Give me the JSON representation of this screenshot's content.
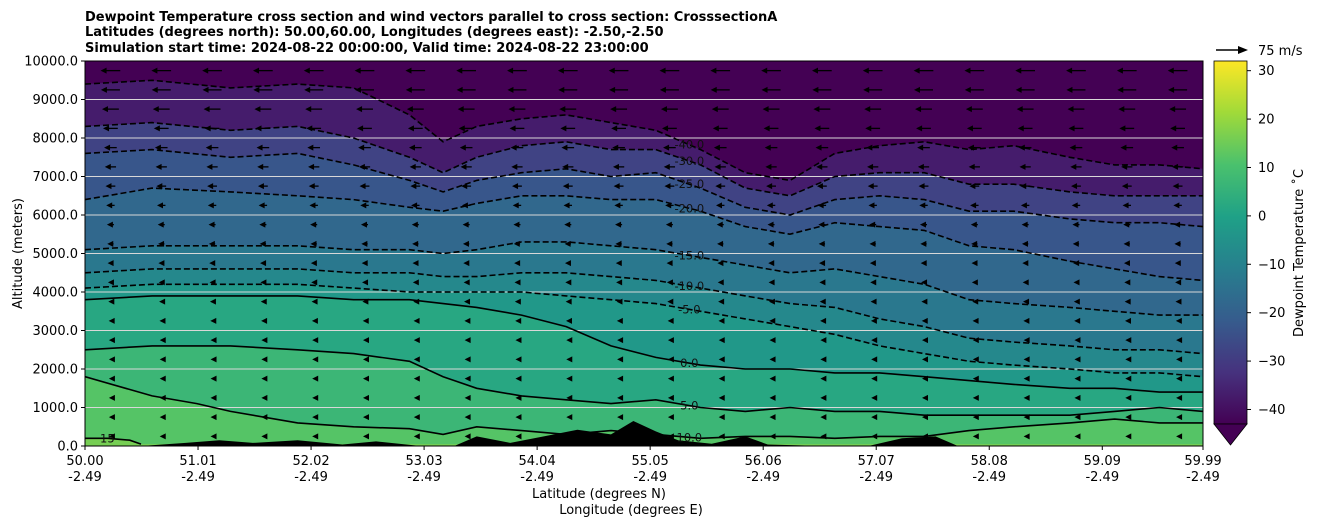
{
  "chart_data": {
    "type": "heatmap",
    "title": [
      "Dewpoint Temperature cross section and wind vectors parallel to cross section: CrosssectionA",
      "Latitudes (degrees north): 50.00,60.00, Longitudes (degrees east): -2.50,-2.50",
      "Simulation start time: 2024-08-22 00:00:00, Valid time: 2024-08-22 23:00:00"
    ],
    "xlabel": "Latitude (degrees N)",
    "xlabel2": "Longitude (degrees E)",
    "ylabel": "Altitude (meters)",
    "xlim": [
      50.0,
      59.99
    ],
    "ylim": [
      0,
      10000
    ],
    "x_ticks": [
      {
        "lat": "50.00",
        "lon": "-2.49",
        "value": 50.0
      },
      {
        "lat": "51.01",
        "lon": "-2.49",
        "value": 51.01
      },
      {
        "lat": "52.02",
        "lon": "-2.49",
        "value": 52.02
      },
      {
        "lat": "53.03",
        "lon": "-2.49",
        "value": 53.03
      },
      {
        "lat": "54.04",
        "lon": "-2.49",
        "value": 54.04
      },
      {
        "lat": "55.05",
        "lon": "-2.49",
        "value": 55.05
      },
      {
        "lat": "56.06",
        "lon": "-2.49",
        "value": 56.06
      },
      {
        "lat": "57.07",
        "lon": "-2.49",
        "value": 57.07
      },
      {
        "lat": "58.08",
        "lon": "-2.49",
        "value": 58.08
      },
      {
        "lat": "59.09",
        "lon": "-2.49",
        "value": 59.09
      },
      {
        "lat": "59.99",
        "lon": "-2.49",
        "value": 59.99
      }
    ],
    "y_ticks": [
      {
        "label": "0.0",
        "value": 0
      },
      {
        "label": "1000.0",
        "value": 1000
      },
      {
        "label": "2000.0",
        "value": 2000
      },
      {
        "label": "3000.0",
        "value": 3000
      },
      {
        "label": "4000.0",
        "value": 4000
      },
      {
        "label": "5000.0",
        "value": 5000
      },
      {
        "label": "6000.0",
        "value": 6000
      },
      {
        "label": "7000.0",
        "value": 7000
      },
      {
        "label": "8000.0",
        "value": 8000
      },
      {
        "label": "9000.0",
        "value": 9000
      },
      {
        "label": "10000.0",
        "value": 10000
      }
    ],
    "grid": "horizontal",
    "colorbar": {
      "label": "Dewpoint Temperature $^\\circ$C",
      "label_display": "Dewpoint Temperature ˚C",
      "range": [
        -43,
        32
      ],
      "ticks": [
        {
          "label": "30",
          "value": 30
        },
        {
          "label": "20",
          "value": 20
        },
        {
          "label": "10",
          "value": 10
        },
        {
          "label": "0",
          "value": 0
        },
        {
          "label": "−10",
          "value": -10
        },
        {
          "label": "−20",
          "value": -20
        },
        {
          "label": "−30",
          "value": -30
        },
        {
          "label": "−40",
          "value": -40
        }
      ],
      "extend": "min",
      "colormap": [
        "#440154",
        "#46327e",
        "#365c8d",
        "#277f8e",
        "#1fa187",
        "#4ac16d",
        "#a0da39",
        "#fde725"
      ]
    },
    "quiver_key": {
      "label": "75 m/s",
      "speed_ms": 75
    },
    "wind_vectors": {
      "levels_m": [
        9750,
        9250,
        8750,
        8250,
        7750,
        7250,
        6750,
        6250,
        5750,
        5250,
        4750,
        4250,
        3750,
        3250,
        2750,
        2250,
        1750,
        1250,
        750,
        250
      ],
      "u_ms": [
        -28,
        -27,
        -24,
        -21,
        -18,
        -16,
        -14,
        -12,
        -10,
        -9,
        -8,
        -7,
        -6,
        -5,
        -4,
        -4,
        -3,
        -3,
        -2,
        -2
      ]
    },
    "terrain": {
      "lat": [
        50.0,
        50.5,
        50.9,
        51.2,
        51.5,
        51.9,
        52.3,
        52.6,
        53.0,
        53.3,
        53.5,
        53.8,
        54.1,
        54.4,
        54.7,
        54.9,
        55.1,
        55.3,
        55.6,
        55.9,
        56.1,
        56.6,
        57.0,
        57.3,
        57.6,
        57.8,
        58.1,
        58.6,
        59.0,
        59.5,
        59.99
      ],
      "height_m": [
        0,
        0,
        80,
        150,
        80,
        150,
        40,
        120,
        0,
        0,
        250,
        80,
        250,
        420,
        300,
        650,
        380,
        150,
        60,
        250,
        40,
        0,
        0,
        200,
        250,
        0,
        0,
        0,
        0,
        0,
        0
      ]
    },
    "contours": [
      {
        "label": "-40.0",
        "value": -40,
        "style": "dashed",
        "lat": [
          50.0,
          50.6,
          51.3,
          51.9,
          52.4,
          52.9,
          53.2,
          53.5,
          53.9,
          54.3,
          54.7,
          55.1,
          55.5,
          55.9,
          56.3,
          56.7,
          57.1,
          57.5,
          57.9,
          58.3,
          58.8,
          59.2,
          59.6,
          59.99
        ],
        "alt_m": [
          9400,
          9500,
          9300,
          9400,
          9300,
          8600,
          7900,
          8300,
          8500,
          8600,
          8400,
          8200,
          7700,
          7100,
          6900,
          7600,
          7800,
          7900,
          7700,
          7800,
          7500,
          7300,
          7300,
          7200
        ]
      },
      {
        "label": "-30.0",
        "value": -30,
        "style": "dashed",
        "lat": [
          50.0,
          50.6,
          51.3,
          51.9,
          52.4,
          52.9,
          53.2,
          53.5,
          53.9,
          54.3,
          54.7,
          55.1,
          55.5,
          55.9,
          56.3,
          56.7,
          57.1,
          57.5,
          57.9,
          58.3,
          58.8,
          59.2,
          59.6,
          59.99
        ],
        "alt_m": [
          8300,
          8400,
          8200,
          8300,
          8000,
          7500,
          7100,
          7500,
          7800,
          7900,
          7700,
          7700,
          7300,
          6700,
          6500,
          7000,
          7100,
          7100,
          6800,
          6800,
          6600,
          6500,
          6500,
          6500
        ]
      },
      {
        "label": "-25.0",
        "value": -25,
        "style": "dashed",
        "lat": [
          50.0,
          50.6,
          51.3,
          51.9,
          52.4,
          52.9,
          53.2,
          53.5,
          53.9,
          54.3,
          54.7,
          55.1,
          55.5,
          55.9,
          56.3,
          56.7,
          57.1,
          57.5,
          57.9,
          58.3,
          58.8,
          59.2,
          59.6,
          59.99
        ],
        "alt_m": [
          7600,
          7700,
          7500,
          7600,
          7300,
          6900,
          6600,
          6900,
          7100,
          7200,
          7000,
          7100,
          6700,
          6200,
          6000,
          6400,
          6500,
          6400,
          6100,
          6100,
          5900,
          5800,
          5800,
          5700
        ]
      },
      {
        "label": "-20.0",
        "value": -20,
        "style": "dashed",
        "lat": [
          50.0,
          50.6,
          51.3,
          51.9,
          52.4,
          52.9,
          53.2,
          53.5,
          53.9,
          54.3,
          54.7,
          55.1,
          55.5,
          55.9,
          56.3,
          56.7,
          57.1,
          57.5,
          57.9,
          58.3,
          58.8,
          59.2,
          59.6,
          59.99
        ],
        "alt_m": [
          6400,
          6700,
          6600,
          6500,
          6400,
          6200,
          6100,
          6300,
          6500,
          6500,
          6400,
          6400,
          6100,
          5700,
          5500,
          5800,
          5700,
          5600,
          5200,
          5100,
          4800,
          4600,
          4400,
          4300
        ]
      },
      {
        "label": "-15.0",
        "value": -15,
        "style": "dashed",
        "lat": [
          50.0,
          50.6,
          51.3,
          51.9,
          52.4,
          52.9,
          53.2,
          53.5,
          53.9,
          54.3,
          54.7,
          55.1,
          55.5,
          55.9,
          56.3,
          56.7,
          57.1,
          57.5,
          57.9,
          58.3,
          58.8,
          59.2,
          59.6,
          59.99
        ],
        "alt_m": [
          5100,
          5200,
          5200,
          5200,
          5100,
          5100,
          5000,
          5100,
          5300,
          5300,
          5200,
          5100,
          4900,
          4700,
          4500,
          4600,
          4400,
          4200,
          3800,
          3700,
          3600,
          3500,
          3400,
          3400
        ]
      },
      {
        "label": "-10.0",
        "value": -10,
        "style": "dashed",
        "lat": [
          50.0,
          50.6,
          51.3,
          51.9,
          52.4,
          52.9,
          53.2,
          53.5,
          53.9,
          54.3,
          54.7,
          55.1,
          55.5,
          55.9,
          56.3,
          56.7,
          57.1,
          57.5,
          57.9,
          58.3,
          58.8,
          59.2,
          59.6,
          59.99
        ],
        "alt_m": [
          4500,
          4600,
          4600,
          4600,
          4500,
          4500,
          4400,
          4400,
          4500,
          4500,
          4400,
          4300,
          4100,
          3900,
          3700,
          3600,
          3300,
          3100,
          2800,
          2700,
          2600,
          2500,
          2500,
          2400
        ]
      },
      {
        "label": "-5.0",
        "value": -5,
        "style": "dashed",
        "lat": [
          50.0,
          50.6,
          51.3,
          51.9,
          52.4,
          52.9,
          53.2,
          53.5,
          53.9,
          54.3,
          54.7,
          55.1,
          55.5,
          55.9,
          56.3,
          56.7,
          57.1,
          57.5,
          57.9,
          58.3,
          58.8,
          59.2,
          59.6,
          59.99
        ],
        "alt_m": [
          4100,
          4200,
          4200,
          4200,
          4100,
          4000,
          4000,
          4000,
          4000,
          3900,
          3800,
          3700,
          3500,
          3300,
          3100,
          2900,
          2600,
          2400,
          2200,
          2100,
          2000,
          1900,
          1900,
          1800
        ]
      },
      {
        "label": "0.0",
        "value": 0,
        "style": "solid",
        "lat": [
          50.0,
          50.6,
          51.3,
          51.9,
          52.4,
          52.9,
          53.2,
          53.5,
          53.9,
          54.3,
          54.7,
          55.1,
          55.5,
          55.9,
          56.3,
          56.7,
          57.1,
          57.5,
          57.9,
          58.3,
          58.8,
          59.2,
          59.6,
          59.99
        ],
        "alt_m": [
          3800,
          3900,
          3900,
          3900,
          3800,
          3800,
          3700,
          3600,
          3400,
          3100,
          2600,
          2300,
          2100,
          2000,
          2000,
          1900,
          1900,
          1800,
          1700,
          1600,
          1500,
          1500,
          1400,
          1400
        ]
      },
      {
        "label": "5.0",
        "value": 5,
        "style": "solid",
        "lat": [
          50.0,
          50.6,
          51.3,
          51.9,
          52.4,
          52.9,
          53.2,
          53.5,
          53.9,
          54.3,
          54.7,
          55.1,
          55.5,
          55.9,
          56.3,
          56.7,
          57.1,
          57.5,
          57.9,
          58.3,
          58.8,
          59.2,
          59.6,
          59.99
        ],
        "alt_m": [
          2500,
          2600,
          2600,
          2500,
          2400,
          2200,
          1800,
          1500,
          1300,
          1200,
          1100,
          1200,
          1000,
          900,
          1000,
          900,
          900,
          800,
          800,
          800,
          800,
          900,
          1000,
          900
        ]
      },
      {
        "label": "10.0",
        "value": 10,
        "style": "solid",
        "lat": [
          50.0,
          50.6,
          51.0,
          51.3,
          51.9,
          52.4,
          52.9,
          53.2,
          53.5,
          53.9,
          54.3,
          54.7,
          55.1,
          55.5,
          55.9,
          56.3,
          56.7,
          57.1,
          57.5,
          57.9,
          58.3,
          58.8,
          59.2,
          59.6,
          59.99
        ],
        "alt_m": [
          1800,
          1300,
          1100,
          900,
          600,
          500,
          450,
          300,
          500,
          400,
          300,
          400,
          300,
          200,
          250,
          250,
          200,
          250,
          250,
          400,
          500,
          600,
          700,
          600,
          600
        ]
      },
      {
        "label": "15",
        "value": 15,
        "style": "solid",
        "lat": [
          50.0,
          50.2,
          50.4,
          50.5
        ],
        "alt_m": [
          200,
          200,
          150,
          50
        ]
      }
    ]
  }
}
